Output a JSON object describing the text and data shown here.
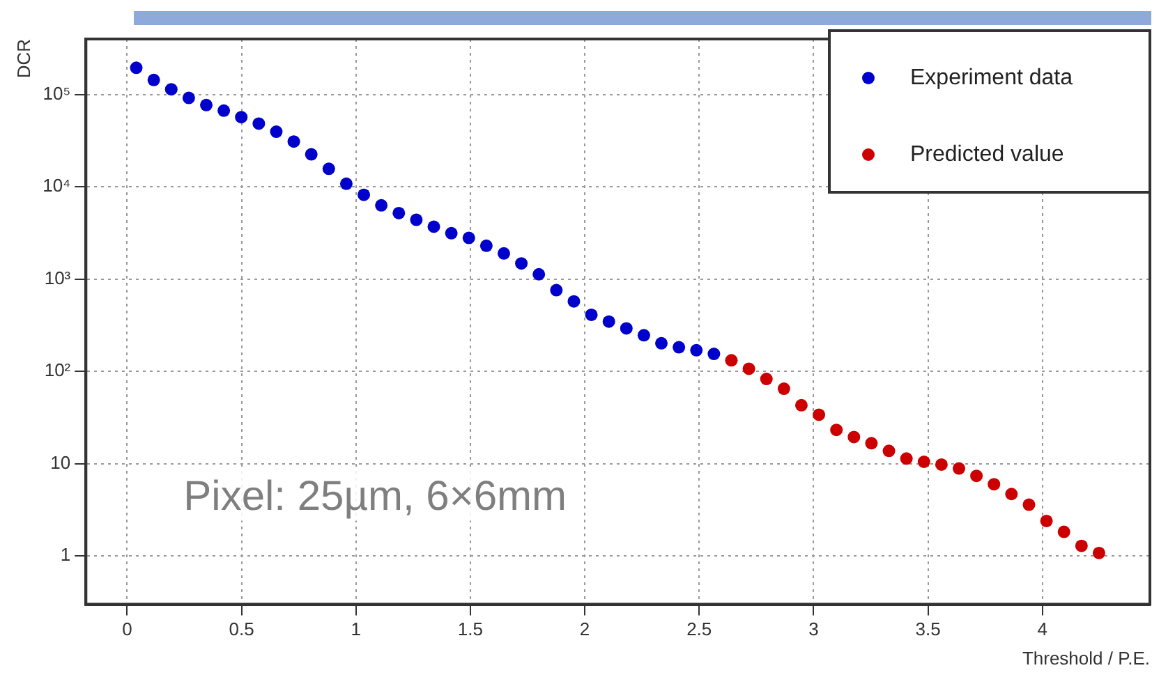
{
  "chart_data": {
    "type": "scatter",
    "xlabel": "Threshold / P.E.",
    "ylabel": "DCR",
    "annotations": [
      "Pixel: 25µm, 6×6mm"
    ],
    "log": "y",
    "grid": true,
    "legend": "top right",
    "marker": "circle",
    "xlim": [
      -0.18,
      4.47
    ],
    "xticks": [
      0,
      0.5,
      1,
      1.5,
      2,
      2.5,
      3,
      3.5,
      4
    ],
    "ylim": [
      0.3,
      400000
    ],
    "yticks": [
      1,
      10,
      {
        "value": 100,
        "label": "10²"
      },
      {
        "value": 1000,
        "label": "10³"
      },
      {
        "value": 10000,
        "label": "10⁴"
      },
      {
        "value": 100000,
        "label": "10⁵"
      }
    ],
    "series": [
      {
        "name": "Experiment data",
        "color": "#0000cc",
        "x": [
          0.04,
          0.1165,
          0.193,
          0.2695,
          0.346,
          0.4225,
          0.499,
          0.5755,
          0.652,
          0.7285,
          0.805,
          0.8815,
          0.958,
          1.0345,
          1.111,
          1.1875,
          1.264,
          1.3405,
          1.417,
          1.4935,
          1.57,
          1.6465,
          1.723,
          1.7995,
          1.876,
          1.9525,
          2.029,
          2.1055,
          2.182,
          2.2585,
          2.335,
          2.4115,
          2.488,
          2.5645
        ],
        "values": [
          195000,
          144000,
          114000,
          92000,
          77000,
          67000,
          57000,
          48500,
          39600,
          31000,
          22500,
          15700,
          10800,
          8200,
          6300,
          5200,
          4400,
          3700,
          3150,
          2800,
          2300,
          1900,
          1480,
          1130,
          760,
          575,
          411,
          347,
          293,
          247,
          202,
          183,
          170,
          155
        ]
      },
      {
        "name": "Predicted value",
        "color": "#cc0000",
        "x": [
          2.641,
          2.7175,
          2.794,
          2.8705,
          2.947,
          3.0235,
          3.1,
          3.1765,
          3.253,
          3.3295,
          3.406,
          3.4825,
          3.559,
          3.6355,
          3.712,
          3.7885,
          3.865,
          3.9415,
          4.018,
          4.0945,
          4.171,
          4.2475
        ],
        "values": [
          132,
          107,
          83,
          65,
          43,
          34,
          23.3,
          19.5,
          16.7,
          13.8,
          11.4,
          10.5,
          9.8,
          8.9,
          7.4,
          6.0,
          4.7,
          3.6,
          2.4,
          1.83,
          1.29,
          1.08
        ]
      }
    ]
  }
}
